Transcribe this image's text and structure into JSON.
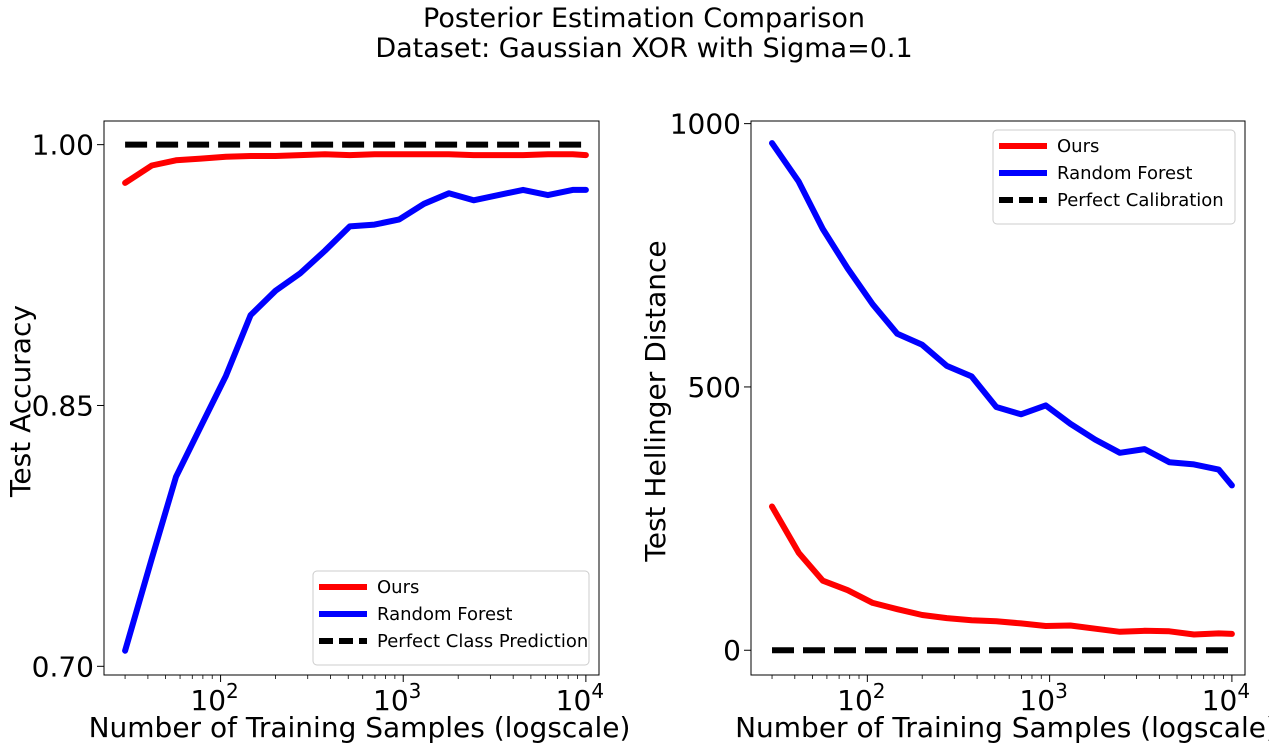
{
  "figure": {
    "title_line1": "Posterior Estimation Comparison",
    "title_line2": "Dataset: Gaussian XOR with Sigma=0.1"
  },
  "colors": {
    "ours": "#ff0000",
    "random_forest": "#0000ff",
    "reference": "#000000"
  },
  "chart_data": [
    {
      "type": "line",
      "xscale": "log",
      "xlabel": "Number of Training Samples (logscale)",
      "ylabel": "Test Accuracy",
      "xlim": [
        23,
        11800
      ],
      "ylim": [
        0.695,
        1.0136
      ],
      "xticks": [
        {
          "value": 100,
          "base": "10",
          "exp": "2"
        },
        {
          "value": 1000,
          "base": "10",
          "exp": "3"
        },
        {
          "value": 10000,
          "base": "10",
          "exp": "4"
        }
      ],
      "yticks": [
        {
          "value": 0.7,
          "label": "0.70"
        },
        {
          "value": 0.85,
          "label": "0.85"
        },
        {
          "value": 1.0,
          "label": "1.00"
        }
      ],
      "legend_position": "bottom-right",
      "x": [
        30,
        42,
        57,
        78,
        107,
        146,
        200,
        273,
        373,
        510,
        697,
        952,
        1300,
        1778,
        2429,
        3319,
        4535,
        6196,
        8466,
        10000
      ],
      "series": [
        {
          "name": "Ours",
          "color": "#ff0000",
          "dash": "solid",
          "values": [
            0.978,
            0.988,
            0.991,
            0.992,
            0.993,
            0.9935,
            0.9935,
            0.994,
            0.9945,
            0.994,
            0.9945,
            0.9945,
            0.9945,
            0.9945,
            0.994,
            0.994,
            0.994,
            0.9945,
            0.9945,
            0.994
          ]
        },
        {
          "name": "Random Forest",
          "color": "#0000ff",
          "dash": "solid",
          "values": [
            0.709,
            0.762,
            0.809,
            0.838,
            0.867,
            0.902,
            0.916,
            0.926,
            0.939,
            0.953,
            0.954,
            0.957,
            0.966,
            0.972,
            0.968,
            0.971,
            0.974,
            0.971,
            0.974,
            0.974
          ]
        },
        {
          "name": "Perfect Class Prediction",
          "color": "#000000",
          "dash": "dashed",
          "values": [
            1.0,
            1.0,
            1.0,
            1.0,
            1.0,
            1.0,
            1.0,
            1.0,
            1.0,
            1.0,
            1.0,
            1.0,
            1.0,
            1.0,
            1.0,
            1.0,
            1.0,
            1.0,
            1.0,
            1.0
          ]
        }
      ]
    },
    {
      "type": "line",
      "xscale": "log",
      "xlabel": "Number of Training Samples (logscale)",
      "ylabel": "Test Hellinger Distance",
      "xlim": [
        23,
        11800
      ],
      "ylim": [
        -47,
        1005
      ],
      "xticks": [
        {
          "value": 100,
          "base": "10",
          "exp": "2"
        },
        {
          "value": 1000,
          "base": "10",
          "exp": "3"
        },
        {
          "value": 10000,
          "base": "10",
          "exp": "4"
        }
      ],
      "yticks": [
        {
          "value": 0,
          "label": "0"
        },
        {
          "value": 500,
          "label": "500"
        },
        {
          "value": 1000,
          "label": "1000"
        }
      ],
      "legend_position": "top-right",
      "x": [
        30,
        42,
        57,
        78,
        107,
        146,
        200,
        273,
        373,
        510,
        697,
        952,
        1300,
        1778,
        2429,
        3319,
        4535,
        6196,
        8466,
        10000
      ],
      "series": [
        {
          "name": "Ours",
          "color": "#ff0000",
          "dash": "solid",
          "values": [
            273,
            185,
            132,
            114,
            90,
            78,
            67,
            61,
            57,
            55,
            51,
            46,
            47,
            41,
            35,
            37,
            36,
            30,
            32,
            31
          ]
        },
        {
          "name": "Random Forest",
          "color": "#0000ff",
          "dash": "solid",
          "values": [
            963,
            890,
            800,
            725,
            657,
            601,
            580,
            540,
            520,
            462,
            448,
            465,
            430,
            400,
            375,
            382,
            357,
            353,
            343,
            313
          ]
        },
        {
          "name": "Perfect Calibration",
          "color": "#000000",
          "dash": "dashed",
          "values": [
            0,
            0,
            0,
            0,
            0,
            0,
            0,
            0,
            0,
            0,
            0,
            0,
            0,
            0,
            0,
            0,
            0,
            0,
            0,
            0
          ]
        }
      ]
    }
  ]
}
